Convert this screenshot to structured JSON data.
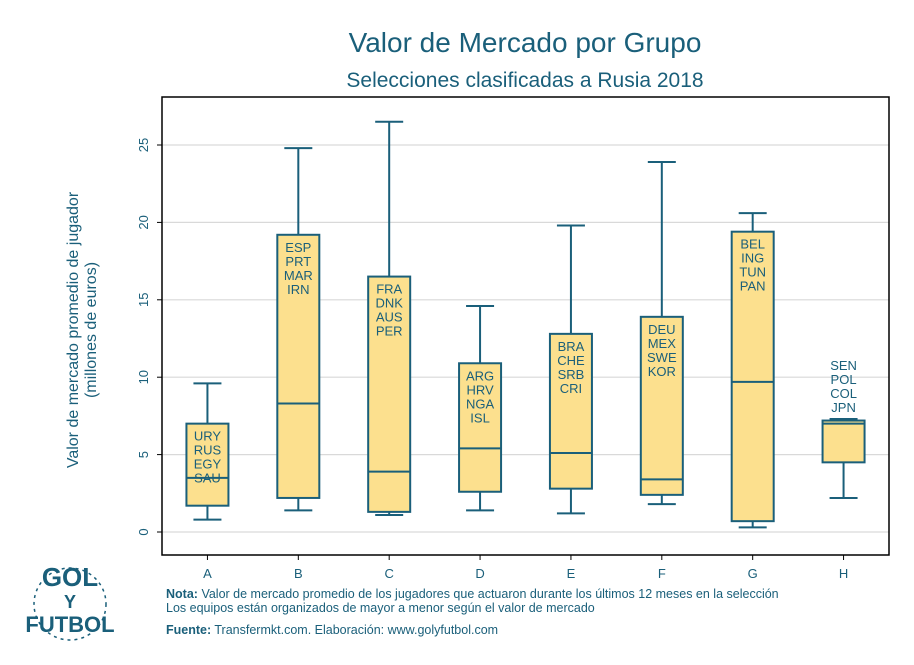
{
  "chart_data": {
    "type": "boxplot",
    "title": "Valor de Mercado por Grupo",
    "subtitle": "Selecciones clasificadas a Rusia 2018",
    "ylabel_line1": "Valor de mercado promedio de jugador",
    "ylabel_line2": "(millones de euros)",
    "ylim": [
      -1.5,
      28
    ],
    "yticks": [
      "0",
      "5",
      "10",
      "15",
      "20",
      "25"
    ],
    "grid": true,
    "colors": {
      "box_fill": "#fce08e",
      "box_stroke": "#1a5f7a",
      "grid": "#d9d9d9",
      "text": "#1a5f7a"
    },
    "groups": [
      {
        "category": "A",
        "min": 0.8,
        "q1": 1.7,
        "median": 3.5,
        "q3": 7.0,
        "max": 9.6,
        "teams": [
          "URY",
          "RUS",
          "EGY",
          "SAU"
        ]
      },
      {
        "category": "B",
        "min": 1.4,
        "q1": 2.2,
        "median": 8.3,
        "q3": 19.2,
        "max": 24.8,
        "teams": [
          "ESP",
          "PRT",
          "MAR",
          "IRN"
        ]
      },
      {
        "category": "C",
        "min": 1.1,
        "q1": 1.3,
        "median": 3.9,
        "q3": 16.5,
        "max": 26.5,
        "teams": [
          "FRA",
          "DNK",
          "AUS",
          "PER"
        ]
      },
      {
        "category": "D",
        "min": 1.4,
        "q1": 2.6,
        "median": 5.4,
        "q3": 10.9,
        "max": 14.6,
        "teams": [
          "ARG",
          "HRV",
          "NGA",
          "ISL"
        ]
      },
      {
        "category": "E",
        "min": 1.2,
        "q1": 2.8,
        "median": 5.1,
        "q3": 12.8,
        "max": 19.8,
        "teams": [
          "BRA",
          "CHE",
          "SRB",
          "CRI"
        ]
      },
      {
        "category": "F",
        "min": 1.8,
        "q1": 2.4,
        "median": 3.4,
        "q3": 13.9,
        "max": 23.9,
        "teams": [
          "DEU",
          "MEX",
          "SWE",
          "KOR"
        ]
      },
      {
        "category": "G",
        "min": 0.3,
        "q1": 0.7,
        "median": 9.7,
        "q3": 19.4,
        "max": 20.6,
        "teams": [
          "BEL",
          "ING",
          "TUN",
          "PAN"
        ]
      },
      {
        "category": "H",
        "min": 2.2,
        "q1": 4.5,
        "median": 7.0,
        "q3": 7.2,
        "max": 7.3,
        "teams": [
          "SEN",
          "POL",
          "COL",
          "JPN"
        ]
      }
    ]
  },
  "footer": {
    "note_label": "Nota:",
    "note_line1": "Valor de mercado promedio de los jugadores que actuaron durante los últimos 12 meses en la selección",
    "note_line2": "Los equipos están organizados de mayor a menor según el valor de mercado",
    "source_label": "Fuente:",
    "source_text": "Transfermkt.com. Elaboración: www.golyfutbol.com"
  },
  "logo": {
    "word1": "GOL",
    "word2": "Y",
    "word3": "FUTBOL"
  }
}
